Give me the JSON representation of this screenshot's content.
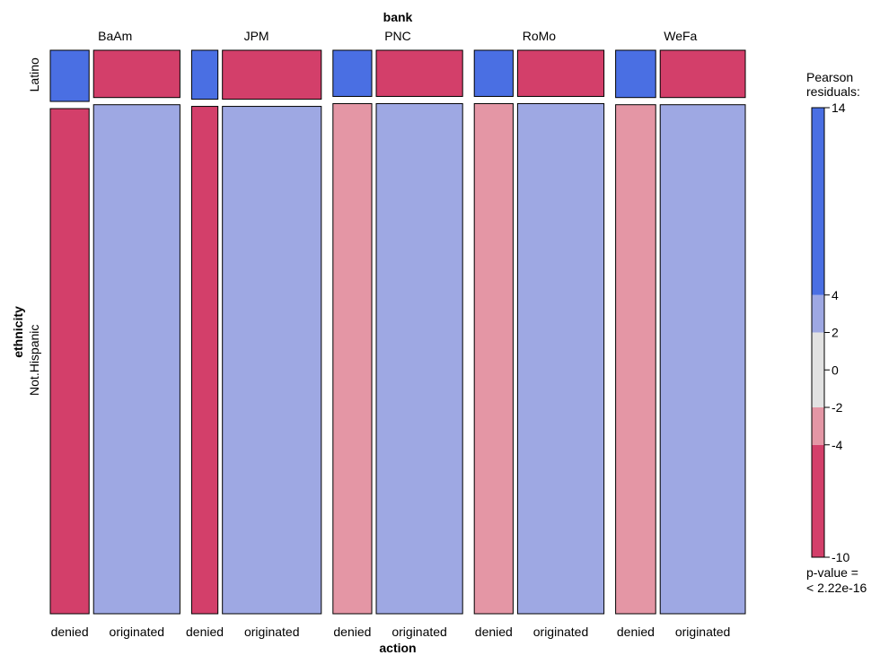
{
  "chart_data": {
    "type": "mosaic",
    "top_variable": "bank",
    "bottom_variable": "action",
    "side_variable": "ethnicity",
    "banks": [
      "BaAm",
      "JPM",
      "PNC",
      "RoMo",
      "WeFa"
    ],
    "actions": [
      "denied",
      "originated"
    ],
    "ethnicities": [
      "Latino",
      "Not.Hispanic"
    ],
    "legend": {
      "title_line1": "Pearson",
      "title_line2": "residuals:",
      "breaks": [
        -10,
        -4,
        -2,
        0,
        2,
        4,
        14
      ],
      "tick_labels": [
        "14",
        "4",
        "2",
        "0",
        "-2",
        "-4",
        "-10"
      ],
      "pvalue_line1": "p-value =",
      "pvalue_line2": "< 2.22e-16"
    },
    "bank_width_fractions": [
      0.2,
      0.2,
      0.2,
      0.2,
      0.2
    ],
    "denied_width_fraction": [
      0.31,
      0.21,
      0.31,
      0.31,
      0.32
    ],
    "latino_height_fraction": {
      "BaAm": {
        "denied": 0.092,
        "originated": 0.085
      },
      "JPM": {
        "denied": 0.088,
        "originated": 0.088
      },
      "PNC": {
        "denied": 0.083,
        "originated": 0.083
      },
      "RoMo": {
        "denied": 0.083,
        "originated": 0.083
      },
      "WeFa": {
        "denied": 0.085,
        "originated": 0.085
      }
    },
    "residual_category": {
      "BaAm": {
        "Latino": {
          "denied": "> 4",
          "originated": "< -4"
        },
        "Not.Hispanic": {
          "denied": "< -4",
          "originated": "2 to 4"
        }
      },
      "JPM": {
        "Latino": {
          "denied": "> 4",
          "originated": "< -4"
        },
        "Not.Hispanic": {
          "denied": "< -4",
          "originated": "2 to 4"
        }
      },
      "PNC": {
        "Latino": {
          "denied": "> 4",
          "originated": "< -4"
        },
        "Not.Hispanic": {
          "denied": "-4 to -2",
          "originated": "2 to 4"
        }
      },
      "RoMo": {
        "Latino": {
          "denied": "> 4",
          "originated": "< -4"
        },
        "Not.Hispanic": {
          "denied": "-4 to -2",
          "originated": "2 to 4"
        }
      },
      "WeFa": {
        "Latino": {
          "denied": "> 4",
          "originated": "< -4"
        },
        "Not.Hispanic": {
          "denied": "-4 to -2",
          "originated": "2 to 4"
        }
      }
    },
    "colors": {
      "strong_positive": "#4a6fe3",
      "weak_positive": "#9ea8e3",
      "neutral": "#e2e2e2",
      "weak_negative": "#e496a5",
      "strong_negative": "#d33f6a",
      "border": "#000000"
    }
  }
}
